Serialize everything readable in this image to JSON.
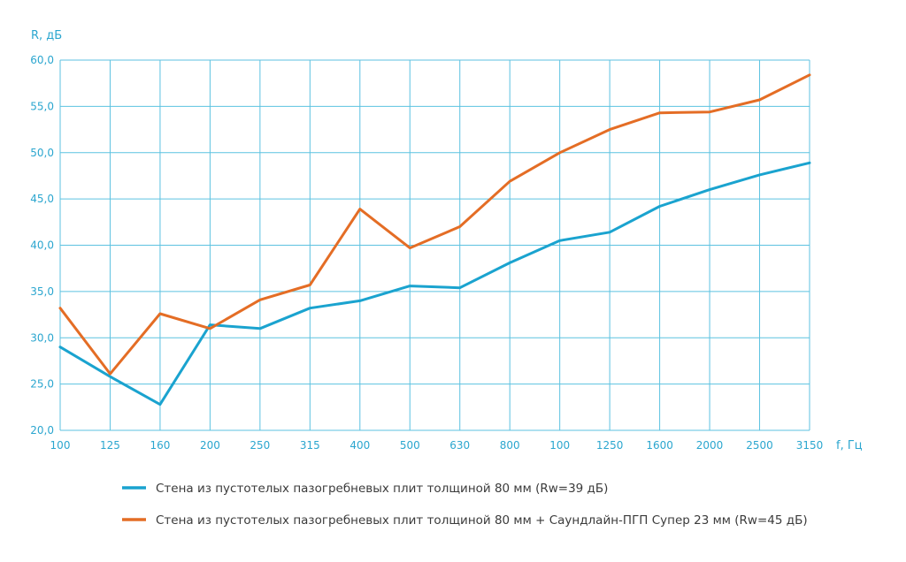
{
  "chart_data": {
    "type": "line",
    "title": "",
    "xlabel": "f, Гц",
    "ylabel": "R, дБ",
    "categories": [
      "100",
      "125",
      "160",
      "200",
      "250",
      "315",
      "400",
      "500",
      "630",
      "800",
      "100",
      "1250",
      "1600",
      "2000",
      "2500",
      "3150"
    ],
    "yticks": [
      "20,0",
      "25,0",
      "30,0",
      "35,0",
      "40,0",
      "45,0",
      "50,0",
      "55,0",
      "60,0"
    ],
    "ylim": [
      20,
      60
    ],
    "grid": true,
    "legend_position": "bottom",
    "series": [
      {
        "name": "Стена из пустотелых пазогребневых плит толщиной 80 мм (Rw=39 дБ)",
        "color": "#1aa3cf",
        "values": [
          29.0,
          25.8,
          22.8,
          31.4,
          31.0,
          33.2,
          34.0,
          35.6,
          35.4,
          38.1,
          40.5,
          41.4,
          44.2,
          46.0,
          47.6,
          48.9
        ]
      },
      {
        "name": "Стена из пустотелых пазогребневых плит толщиной 80 мм + Саундлайн-ПГП Супер 23 мм (Rw=45 дБ)",
        "color": "#e46d25",
        "values": [
          33.2,
          26.1,
          32.6,
          31.0,
          34.1,
          35.7,
          43.9,
          39.7,
          42.0,
          46.9,
          50.0,
          52.5,
          54.3,
          54.4,
          55.7,
          58.4
        ]
      }
    ]
  }
}
